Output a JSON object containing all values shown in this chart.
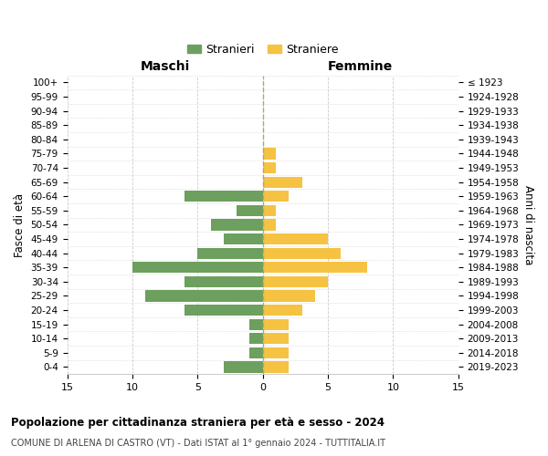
{
  "age_groups": [
    "0-4",
    "5-9",
    "10-14",
    "15-19",
    "20-24",
    "25-29",
    "30-34",
    "35-39",
    "40-44",
    "45-49",
    "50-54",
    "55-59",
    "60-64",
    "65-69",
    "70-74",
    "75-79",
    "80-84",
    "85-89",
    "90-94",
    "95-99",
    "100+"
  ],
  "birth_years": [
    "2019-2023",
    "2014-2018",
    "2009-2013",
    "2004-2008",
    "1999-2003",
    "1994-1998",
    "1989-1993",
    "1984-1988",
    "1979-1983",
    "1974-1978",
    "1969-1973",
    "1964-1968",
    "1959-1963",
    "1954-1958",
    "1949-1953",
    "1944-1948",
    "1939-1943",
    "1934-1938",
    "1929-1933",
    "1924-1928",
    "≤ 1923"
  ],
  "maschi": [
    3,
    1,
    1,
    1,
    6,
    9,
    6,
    10,
    5,
    3,
    4,
    2,
    6,
    0,
    0,
    0,
    0,
    0,
    0,
    0,
    0
  ],
  "femmine": [
    2,
    2,
    2,
    2,
    3,
    4,
    5,
    8,
    6,
    5,
    1,
    1,
    2,
    3,
    1,
    1,
    0,
    0,
    0,
    0,
    0
  ],
  "maschi_color": "#6d9f5e",
  "femmine_color": "#f5c242",
  "title": "Popolazione per cittadinanza straniera per età e sesso - 2024",
  "subtitle": "COMUNE DI ARLENA DI CASTRO (VT) - Dati ISTAT al 1° gennaio 2024 - TUTTITALIA.IT",
  "legend_maschi": "Stranieri",
  "legend_femmine": "Straniere",
  "xlabel_left": "Maschi",
  "xlabel_right": "Femmine",
  "ylabel_left": "Fasce di età",
  "ylabel_right": "Anni di nascita",
  "xlim": 15,
  "background_color": "#ffffff",
  "grid_color": "#cccccc"
}
